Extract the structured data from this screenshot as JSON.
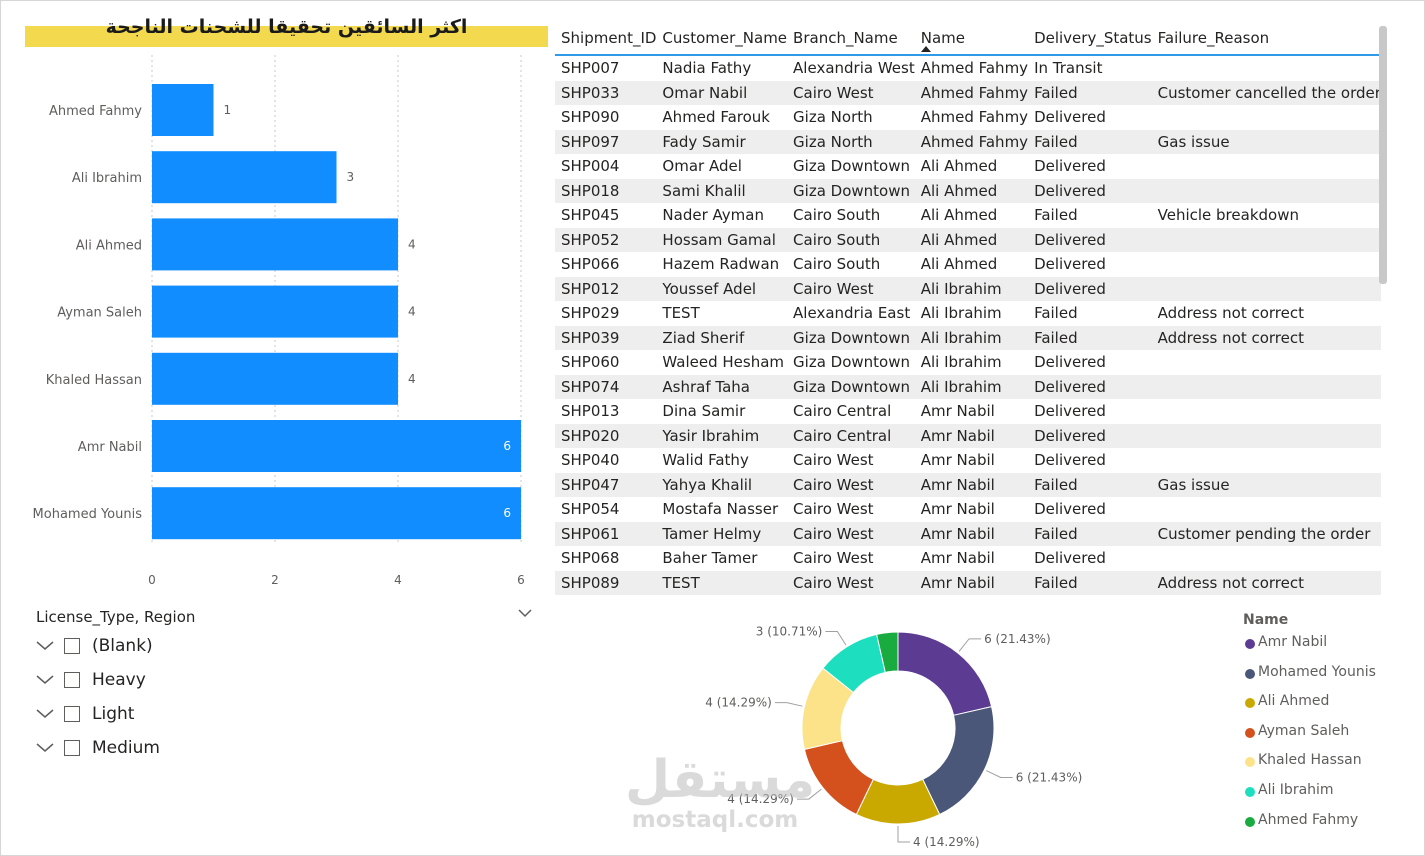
{
  "banner": {
    "title": "اكثر السائقين تحقيقا للشحنات الناجحة"
  },
  "chart_data": {
    "type": "bar",
    "orientation": "horizontal",
    "categories": [
      "Ahmed Fahmy",
      "Ali Ibrahim",
      "Ali Ahmed",
      "Ayman Saleh",
      "Khaled Hassan",
      "Amr Nabil",
      "Mohamed Younis"
    ],
    "values": [
      1,
      3,
      4,
      4,
      4,
      6,
      6
    ],
    "value_labels": [
      "1",
      "3",
      "4",
      "4",
      "4",
      "6",
      "6"
    ],
    "xlim": [
      0,
      6
    ],
    "xticks": [
      "0",
      "2",
      "4",
      "6"
    ],
    "grid": true,
    "bar_color": "#118dff"
  },
  "slicer": {
    "title": "License_Type, Region",
    "items": [
      {
        "label": "(Blank)"
      },
      {
        "label": "Heavy"
      },
      {
        "label": "Light"
      },
      {
        "label": "Medium"
      }
    ]
  },
  "table": {
    "columns": [
      "Shipment_ID",
      "Customer_Name",
      "Branch_Name",
      "Name",
      "Delivery_Status",
      "Failure_Reason"
    ],
    "rows": [
      [
        "SHP007",
        "Nadia Fathy",
        "Alexandria West",
        "Ahmed Fahmy",
        "In Transit",
        ""
      ],
      [
        "SHP033",
        "Omar Nabil",
        "Cairo West",
        "Ahmed Fahmy",
        "Failed",
        "Customer cancelled the order"
      ],
      [
        "SHP090",
        "Ahmed Farouk",
        "Giza North",
        "Ahmed Fahmy",
        "Delivered",
        ""
      ],
      [
        "SHP097",
        "Fady Samir",
        "Giza North",
        "Ahmed Fahmy",
        "Failed",
        "Gas issue"
      ],
      [
        "SHP004",
        "Omar Adel",
        "Giza Downtown",
        "Ali Ahmed",
        "Delivered",
        ""
      ],
      [
        "SHP018",
        "Sami Khalil",
        "Giza Downtown",
        "Ali Ahmed",
        "Delivered",
        ""
      ],
      [
        "SHP045",
        "Nader Ayman",
        "Cairo South",
        "Ali Ahmed",
        "Failed",
        "Vehicle breakdown"
      ],
      [
        "SHP052",
        "Hossam Gamal",
        "Cairo South",
        "Ali Ahmed",
        "Delivered",
        ""
      ],
      [
        "SHP066",
        "Hazem Radwan",
        "Cairo South",
        "Ali Ahmed",
        "Delivered",
        ""
      ],
      [
        "SHP012",
        "Youssef Adel",
        "Cairo West",
        "Ali Ibrahim",
        "Delivered",
        ""
      ],
      [
        "SHP029",
        "TEST",
        "Alexandria East",
        "Ali Ibrahim",
        "Failed",
        "Address not correct"
      ],
      [
        "SHP039",
        "Ziad Sherif",
        "Giza Downtown",
        "Ali Ibrahim",
        "Failed",
        "Address not correct"
      ],
      [
        "SHP060",
        "Waleed Hesham",
        "Giza Downtown",
        "Ali Ibrahim",
        "Delivered",
        ""
      ],
      [
        "SHP074",
        "Ashraf Taha",
        "Giza Downtown",
        "Ali Ibrahim",
        "Delivered",
        ""
      ],
      [
        "SHP013",
        "Dina Samir",
        "Cairo Central",
        "Amr Nabil",
        "Delivered",
        ""
      ],
      [
        "SHP020",
        "Yasir Ibrahim",
        "Cairo Central",
        "Amr Nabil",
        "Delivered",
        ""
      ],
      [
        "SHP040",
        "Walid Fathy",
        "Cairo West",
        "Amr Nabil",
        "Delivered",
        ""
      ],
      [
        "SHP047",
        "Yahya Khalil",
        "Cairo West",
        "Amr Nabil",
        "Failed",
        "Gas issue"
      ],
      [
        "SHP054",
        "Mostafa Nasser",
        "Cairo West",
        "Amr Nabil",
        "Delivered",
        ""
      ],
      [
        "SHP061",
        "Tamer Helmy",
        "Cairo West",
        "Amr Nabil",
        "Failed",
        "Customer pending the order"
      ],
      [
        "SHP068",
        "Baher Tamer",
        "Cairo West",
        "Amr Nabil",
        "Delivered",
        ""
      ],
      [
        "SHP089",
        "TEST",
        "Cairo West",
        "Amr Nabil",
        "Failed",
        "Address not correct"
      ]
    ]
  },
  "donut": {
    "type": "pie",
    "slices": [
      {
        "name": "Amr Nabil",
        "value": 6,
        "label": "6 (21.43%)",
        "color": "#5c3c92"
      },
      {
        "name": "Mohamed Younis",
        "value": 6,
        "label": "6 (21.43%)",
        "color": "#4a5779"
      },
      {
        "name": "Ali Ahmed",
        "value": 4,
        "label": "4 (14.29%)",
        "color": "#c9a800"
      },
      {
        "name": "Ayman Saleh",
        "value": 4,
        "label": "4 (14.29%)",
        "color": "#d4511e"
      },
      {
        "name": "Khaled Hassan",
        "value": 4,
        "label": "4 (14.29%)",
        "color": "#fce38a"
      },
      {
        "name": "Ali Ibrahim",
        "value": 3,
        "label": "3 (10.71%)",
        "color": "#1ddfc0"
      },
      {
        "name": "Ahmed Fahmy",
        "value": 1,
        "label": "",
        "color": "#1aab40"
      }
    ]
  },
  "legend": {
    "title": "Name"
  },
  "watermark": {
    "arabic": "مستقل",
    "latin": "mostaql.com"
  }
}
